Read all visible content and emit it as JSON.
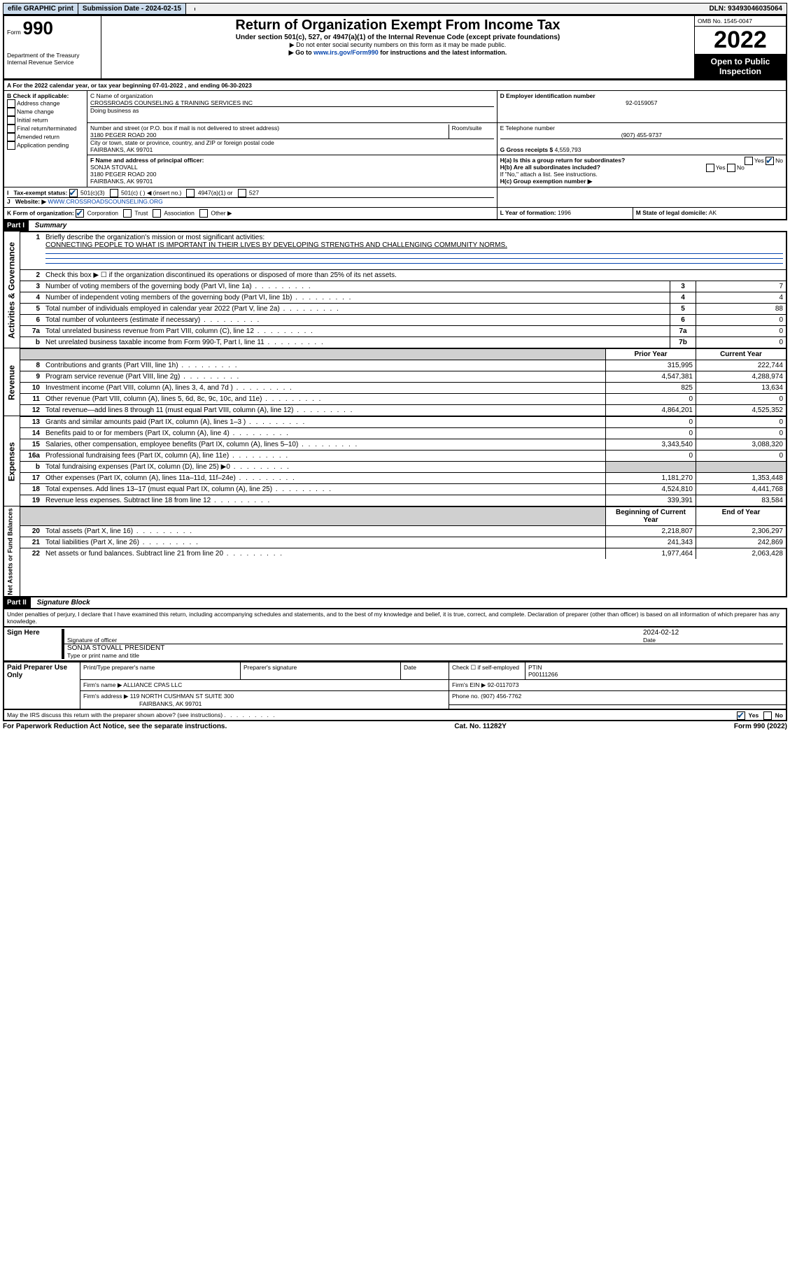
{
  "topbar": {
    "efile": "efile GRAPHIC print",
    "submission_label": "Submission Date - 2024-02-15",
    "dln": "DLN: 93493046035064"
  },
  "header": {
    "form_label": "Form",
    "form_no": "990",
    "title": "Return of Organization Exempt From Income Tax",
    "subtitle": "Under section 501(c), 527, or 4947(a)(1) of the Internal Revenue Code (except private foundations)",
    "instr1": "▶ Do not enter social security numbers on this form as it may be made public.",
    "instr2": "▶ Go to www.irs.gov/Form990 for instructions and the latest information.",
    "dept": "Department of the Treasury\nInternal Revenue Service",
    "omb": "OMB No. 1545-0047",
    "tax_year": "2022",
    "open_public": "Open to Public Inspection"
  },
  "periodA": {
    "text_a": "For the 2022 calendar year, or tax year beginning ",
    "begin": "07-01-2022",
    "text_b": " , and ending ",
    "end": "06-30-2023"
  },
  "boxB": {
    "label": "B Check if applicable:",
    "items": [
      "Address change",
      "Name change",
      "Initial return",
      "Final return/terminated",
      "Amended return",
      "Application pending"
    ]
  },
  "boxC": {
    "name_label": "C Name of organization",
    "name": "CROSSROADS COUNSELING & TRAINING SERVICES INC",
    "dba_label": "Doing business as",
    "street_label": "Number and street (or P.O. box if mail is not delivered to street address)",
    "room_label": "Room/suite",
    "street": "3180 PEGER ROAD 200",
    "city_label": "City or town, state or province, country, and ZIP or foreign postal code",
    "city": "FAIRBANKS, AK  99701"
  },
  "boxD": {
    "label": "D Employer identification number",
    "value": "92-0159057"
  },
  "boxE": {
    "label": "E Telephone number",
    "value": "(907) 455-9737"
  },
  "boxG": {
    "label": "G Gross receipts $",
    "value": "4,559,793"
  },
  "boxF": {
    "label": "F Name and address of principal officer:",
    "name": "SONJA STOVALL",
    "street": "3180 PEGER ROAD 200",
    "city": "FAIRBANKS, AK  99701"
  },
  "boxH": {
    "a": "H(a)  Is this a group return for subordinates?",
    "b": "H(b)  Are all subordinates included?",
    "b_note": "If \"No,\" attach a list. See instructions.",
    "c": "H(c)  Group exemption number ▶"
  },
  "boxI": {
    "label": "Tax-exempt status:",
    "opts": [
      "501(c)(3)",
      "501(c) (  ) ◀ (insert no.)",
      "4947(a)(1) or",
      "527"
    ]
  },
  "boxJ": {
    "label": "Website: ▶",
    "value": "WWW.CROSSROADSCOUNSELING.ORG"
  },
  "boxK": {
    "label": "K Form of organization:",
    "opts": [
      "Corporation",
      "Trust",
      "Association",
      "Other ▶"
    ]
  },
  "boxL": {
    "label": "L Year of formation:",
    "value": "1996"
  },
  "boxM": {
    "label": "M State of legal domicile:",
    "value": "AK"
  },
  "part1": {
    "header": "Part I",
    "title": "Summary",
    "line1_label": "Briefly describe the organization's mission or most significant activities:",
    "mission": "CONNECTING PEOPLE TO WHAT IS IMPORTANT IN THEIR LIVES BY DEVELOPING STRENGTHS AND CHALLENGING COMMUNITY NORMS.",
    "line2": "Check this box ▶ ☐  if the organization discontinued its operations or disposed of more than 25% of its net assets.",
    "gov_rows": [
      {
        "n": "3",
        "t": "Number of voting members of the governing body (Part VI, line 1a)",
        "c": "3",
        "v": "7"
      },
      {
        "n": "4",
        "t": "Number of independent voting members of the governing body (Part VI, line 1b)",
        "c": "4",
        "v": "4"
      },
      {
        "n": "5",
        "t": "Total number of individuals employed in calendar year 2022 (Part V, line 2a)",
        "c": "5",
        "v": "88"
      },
      {
        "n": "6",
        "t": "Total number of volunteers (estimate if necessary)",
        "c": "6",
        "v": "0"
      },
      {
        "n": "7a",
        "t": "Total unrelated business revenue from Part VIII, column (C), line 12",
        "c": "7a",
        "v": "0"
      },
      {
        "n": "b",
        "t": "Net unrelated business taxable income from Form 990-T, Part I, line 11",
        "c": "7b",
        "v": "0"
      }
    ],
    "col_headers": {
      "py": "Prior Year",
      "cy": "Current Year"
    },
    "rev_rows": [
      {
        "n": "8",
        "t": "Contributions and grants (Part VIII, line 1h)",
        "py": "315,995",
        "cy": "222,744"
      },
      {
        "n": "9",
        "t": "Program service revenue (Part VIII, line 2g)",
        "py": "4,547,381",
        "cy": "4,288,974"
      },
      {
        "n": "10",
        "t": "Investment income (Part VIII, column (A), lines 3, 4, and 7d )",
        "py": "825",
        "cy": "13,634"
      },
      {
        "n": "11",
        "t": "Other revenue (Part VIII, column (A), lines 5, 6d, 8c, 9c, 10c, and 11e)",
        "py": "0",
        "cy": "0"
      },
      {
        "n": "12",
        "t": "Total revenue—add lines 8 through 11 (must equal Part VIII, column (A), line 12)",
        "py": "4,864,201",
        "cy": "4,525,352"
      }
    ],
    "exp_rows": [
      {
        "n": "13",
        "t": "Grants and similar amounts paid (Part IX, column (A), lines 1–3 )",
        "py": "0",
        "cy": "0"
      },
      {
        "n": "14",
        "t": "Benefits paid to or for members (Part IX, column (A), line 4)",
        "py": "0",
        "cy": "0"
      },
      {
        "n": "15",
        "t": "Salaries, other compensation, employee benefits (Part IX, column (A), lines 5–10)",
        "py": "3,343,540",
        "cy": "3,088,320"
      },
      {
        "n": "16a",
        "t": "Professional fundraising fees (Part IX, column (A), line 11e)",
        "py": "0",
        "cy": "0"
      },
      {
        "n": "b",
        "t": "Total fundraising expenses (Part IX, column (D), line 25) ▶0",
        "py": "",
        "cy": "",
        "shade": true
      },
      {
        "n": "17",
        "t": "Other expenses (Part IX, column (A), lines 11a–11d, 11f–24e)",
        "py": "1,181,270",
        "cy": "1,353,448"
      },
      {
        "n": "18",
        "t": "Total expenses. Add lines 13–17 (must equal Part IX, column (A), line 25)",
        "py": "4,524,810",
        "cy": "4,441,768"
      },
      {
        "n": "19",
        "t": "Revenue less expenses. Subtract line 18 from line 12",
        "py": "339,391",
        "cy": "83,584"
      }
    ],
    "na_headers": {
      "py": "Beginning of Current Year",
      "cy": "End of Year"
    },
    "na_rows": [
      {
        "n": "20",
        "t": "Total assets (Part X, line 16)",
        "py": "2,218,807",
        "cy": "2,306,297"
      },
      {
        "n": "21",
        "t": "Total liabilities (Part X, line 26)",
        "py": "241,343",
        "cy": "242,869"
      },
      {
        "n": "22",
        "t": "Net assets or fund balances. Subtract line 21 from line 20",
        "py": "1,977,464",
        "cy": "2,063,428"
      }
    ],
    "side_labels": {
      "gov": "Activities & Governance",
      "rev": "Revenue",
      "exp": "Expenses",
      "na": "Net Assets or\nFund Balances"
    }
  },
  "part2": {
    "header": "Part II",
    "title": "Signature Block",
    "declaration": "Under penalties of perjury, I declare that I have examined this return, including accompanying schedules and statements, and to the best of my knowledge and belief, it is true, correct, and complete. Declaration of preparer (other than officer) is based on all information of which preparer has any knowledge.",
    "sign_here": "Sign Here",
    "sig_officer": "Signature of officer",
    "date": "Date",
    "sig_date": "2024-02-12",
    "officer_name": "SONJA STOVALL PRESIDENT",
    "type_name": "Type or print name and title",
    "paid_prep": "Paid Preparer Use Only",
    "p_name": "Print/Type preparer's name",
    "p_sig": "Preparer's signature",
    "p_date": "Date",
    "p_check": "Check ☐ if self-employed",
    "ptin_label": "PTIN",
    "ptin": "P00111266",
    "firm_name_l": "Firm's name    ▶",
    "firm_name": "ALLIANCE CPAS LLC",
    "firm_ein_l": "Firm's EIN ▶",
    "firm_ein": "92-0117073",
    "firm_addr_l": "Firm's address ▶",
    "firm_addr": "119 NORTH CUSHMAN ST SUITE 300",
    "firm_city": "FAIRBANKS, AK  99701",
    "phone_l": "Phone no.",
    "phone": "(907) 456-7762",
    "discuss": "May the IRS discuss this return with the preparer shown above? (see instructions)"
  },
  "footer": {
    "pra": "For Paperwork Reduction Act Notice, see the separate instructions.",
    "cat": "Cat. No. 11282Y",
    "form": "Form 990 (2022)"
  }
}
